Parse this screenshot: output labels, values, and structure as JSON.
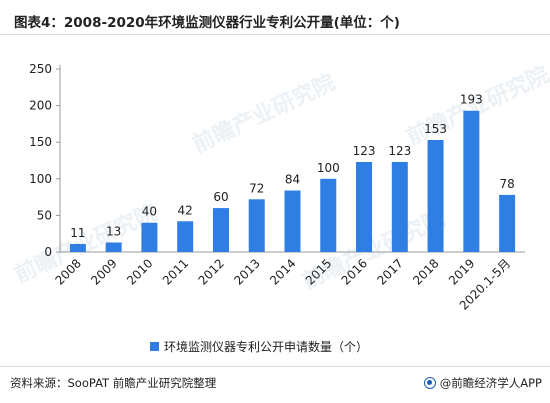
{
  "title": "图表4：2008-2020年环境监测仪器行业专利公开量(单位：个)",
  "chart_data": {
    "type": "bar",
    "categories": [
      "2008",
      "2009",
      "2010",
      "2011",
      "2012",
      "2013",
      "2014",
      "2015",
      "2016",
      "2017",
      "2018",
      "2019",
      "2020.1-5月"
    ],
    "series": [
      {
        "name": "环境监测仪器专利公开申请数量（个）",
        "values": [
          11,
          13,
          40,
          42,
          60,
          72,
          84,
          100,
          123,
          123,
          153,
          193,
          78
        ]
      }
    ],
    "ylim": [
      0,
      250
    ],
    "yticks": [
      0,
      50,
      100,
      150,
      200,
      250
    ],
    "grid": false,
    "legend": "bottom",
    "bar_color": "#2f7ee3"
  },
  "legend_label": "环境监测仪器专利公开申请数量（个）",
  "source": "资料来源：SooPAT 前瞻产业研究院整理",
  "credit": "@前瞻经济学人APP",
  "watermark": "前瞻产业研究院",
  "colors": {
    "bar": "#2f7ee3",
    "axis": "#999999",
    "text": "#222222"
  }
}
